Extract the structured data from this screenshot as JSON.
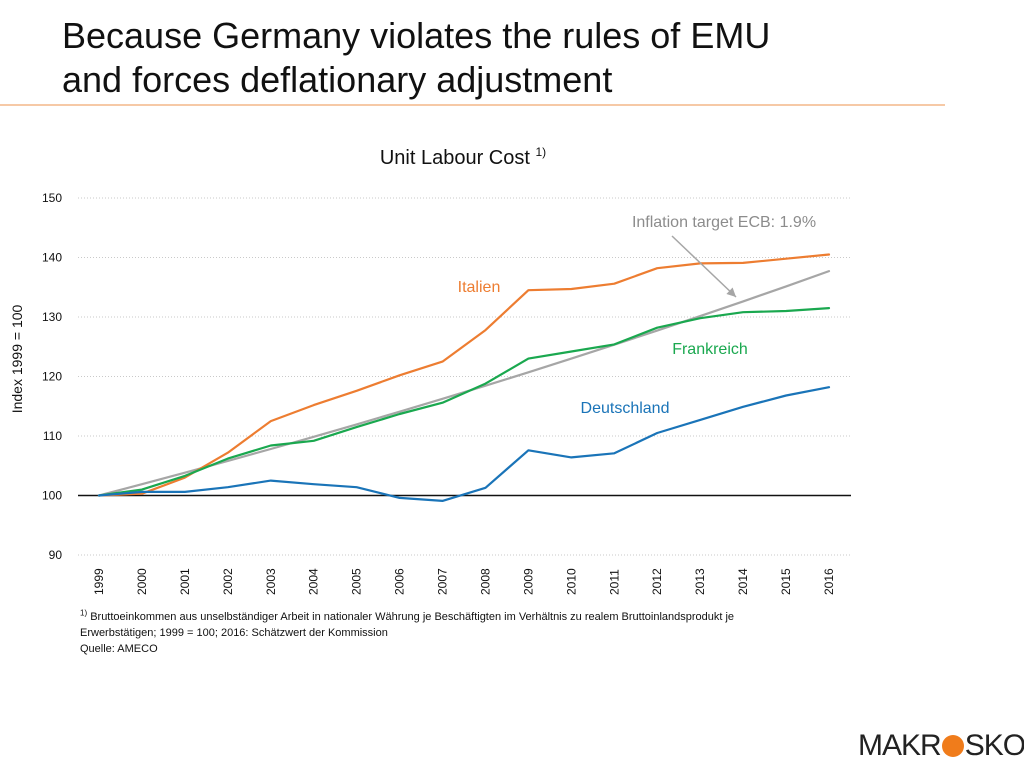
{
  "slide": {
    "title_lines": [
      "Because Germany violates the rules of EMU",
      "and forces deflationary adjustment"
    ]
  },
  "chart_data": {
    "type": "line",
    "title": "Unit Labour Cost",
    "title_superscript": "1)",
    "xlabel": "",
    "ylabel": "Index 1999 = 100",
    "ylim": [
      90,
      150
    ],
    "yticks": [
      90,
      100,
      110,
      120,
      130,
      140,
      150
    ],
    "ytick_labels": [
      "90",
      "100",
      "110",
      "120",
      "130",
      "140",
      "150"
    ],
    "reference_line": 100,
    "grid": true,
    "categories": [
      "1999",
      "2000",
      "2001",
      "2002",
      "2003",
      "2004",
      "2005",
      "2006",
      "2007",
      "2008",
      "2009",
      "2010",
      "2011",
      "2012",
      "2013",
      "2014",
      "2015",
      "2016"
    ],
    "series": [
      {
        "name": "Italien",
        "label": "Italien",
        "color": "#ed7d31",
        "values": [
          100,
          100.3,
          103,
          107.2,
          112.5,
          115.2,
          117.6,
          120.2,
          122.5,
          127.8,
          134.5,
          134.7,
          135.6,
          138.2,
          139,
          139.1,
          139.8,
          140.5
        ]
      },
      {
        "name": "Frankreich",
        "label": "Frankreich",
        "color": "#1aa84f",
        "values": [
          100,
          101,
          103.3,
          106.2,
          108.4,
          109.2,
          111.5,
          113.7,
          115.6,
          118.8,
          123,
          124.2,
          125.4,
          128.2,
          129.8,
          130.8,
          131,
          131.5
        ]
      },
      {
        "name": "Deutschland",
        "label": "Deutschland",
        "color": "#1a74b8",
        "values": [
          100,
          100.6,
          100.6,
          101.4,
          102.5,
          101.9,
          101.4,
          99.6,
          99.1,
          101.3,
          107.6,
          106.4,
          107.1,
          110.5,
          112.7,
          114.9,
          116.8,
          118.2
        ]
      },
      {
        "name": "Inflation target ECB: 1.9%",
        "label": "Inflation target ECB: 1.9%",
        "color": "#a6a6a6",
        "values": [
          100,
          101.9,
          103.83,
          105.81,
          107.82,
          109.86,
          111.95,
          114.08,
          116.25,
          118.46,
          120.71,
          123,
          125.34,
          127.72,
          130.15,
          132.62,
          135.14,
          137.71
        ]
      }
    ]
  },
  "footnote": {
    "marker": "1)",
    "line1": "Bruttoeinkommen aus unselbständiger Arbeit in nationaler Währung je Beschäftigten im Verhältnis zu realem Bruttoinlandsprodukt je",
    "line2": "Erwerbstätigen; 1999 = 100; 2016: Schätzwert der Kommission",
    "source": "Quelle: AMECO"
  },
  "logo": {
    "left_text": "MAKR",
    "right_text": "SKOP",
    "dot_color": "#f07c1b"
  }
}
